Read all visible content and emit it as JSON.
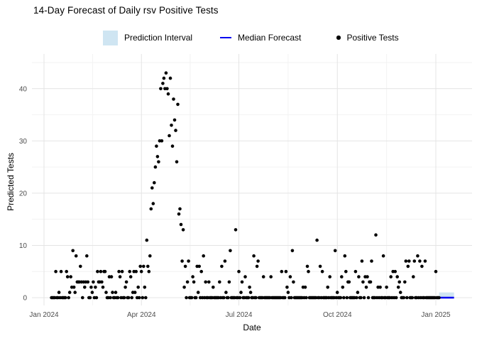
{
  "title": "14-Day Forecast of Daily rsv Positive Tests",
  "legend": {
    "prediction_interval": "Prediction Interval",
    "median_forecast": "Median Forecast",
    "positive_tests": "Positive Tests"
  },
  "colors": {
    "prediction_interval": "#cfe5f2",
    "median_forecast": "#0000f0",
    "points": "#000000",
    "grid_major": "#e4e4e4",
    "grid_minor": "#f2f2f2",
    "tick_text": "#4d4d4d",
    "background": "#ffffff"
  },
  "chart_data": {
    "type": "scatter",
    "title": "14-Day Forecast of Daily rsv Positive Tests",
    "xlabel": "Date",
    "ylabel": "Predicted Tests",
    "legend_position": "top",
    "grid": "on",
    "x_unit": "days_since_2024-01-01",
    "x_tick_labels": [
      "Jan 2024",
      "Apr 2024",
      "Jul 2024",
      "Oct 2024",
      "Jan 2025"
    ],
    "x_tick_days": [
      0,
      91,
      182,
      274,
      366
    ],
    "x_minor_days": [
      45.5,
      136.5,
      228,
      320
    ],
    "xlim_days": [
      -11,
      400
    ],
    "y_ticks": [
      0,
      10,
      20,
      30,
      40
    ],
    "y_minor": [
      5,
      15,
      25,
      35,
      45
    ],
    "ylim": [
      0,
      45
    ],
    "series_name": "Positive Tests",
    "start_day_offset": 7,
    "values": [
      0,
      0,
      0,
      0,
      5,
      0,
      0,
      1,
      0,
      5,
      0,
      0,
      0,
      0,
      5,
      4,
      0,
      1,
      4,
      2,
      9,
      2,
      1,
      8,
      3,
      3,
      3,
      6,
      3,
      0,
      3,
      2,
      3,
      8,
      3,
      0,
      0,
      2,
      1,
      3,
      0,
      2,
      0,
      5,
      3,
      3,
      5,
      3,
      2,
      5,
      5,
      1,
      0,
      0,
      4,
      0,
      4,
      1,
      0,
      0,
      1,
      0,
      0,
      5,
      4,
      0,
      5,
      0,
      0,
      2,
      3,
      0,
      0,
      5,
      4,
      0,
      1,
      5,
      1,
      5,
      0,
      2,
      0,
      6,
      5,
      0,
      6,
      2,
      0,
      11,
      6,
      5,
      8,
      17,
      21,
      18,
      22,
      25,
      29,
      27,
      26,
      30,
      40,
      30,
      41,
      42,
      40,
      43,
      40,
      39,
      31,
      42,
      33,
      29,
      38,
      34,
      32,
      26,
      37,
      16,
      17,
      14,
      7,
      13,
      2,
      6,
      0,
      3,
      7,
      0,
      0,
      0,
      4,
      3,
      0,
      0,
      6,
      1,
      6,
      0,
      5,
      0,
      8,
      0,
      3,
      0,
      0,
      3,
      0,
      0,
      0,
      2,
      0,
      0,
      0,
      0,
      0,
      3,
      0,
      6,
      0,
      0,
      7,
      1,
      0,
      0,
      3,
      9,
      0,
      0,
      0,
      0,
      13,
      0,
      0,
      5,
      0,
      1,
      3,
      0,
      0,
      4,
      0,
      0,
      0,
      2,
      1,
      0,
      0,
      8,
      0,
      0,
      6,
      7,
      0,
      0,
      0,
      0,
      4,
      0,
      0,
      0,
      0,
      0,
      0,
      4,
      0,
      0,
      0,
      0,
      0,
      0,
      0,
      0,
      0,
      5,
      0,
      0,
      0,
      5,
      2,
      1,
      0,
      4,
      0,
      9,
      3,
      0,
      0,
      0,
      0,
      0,
      0,
      0,
      0,
      2,
      0,
      2,
      0,
      6,
      5,
      0,
      0,
      0,
      0,
      0,
      0,
      0,
      11,
      0,
      0,
      6,
      0,
      5,
      0,
      0,
      0,
      0,
      2,
      0,
      4,
      0,
      0,
      0,
      0,
      9,
      0,
      1,
      0,
      0,
      0,
      4,
      2,
      0,
      8,
      5,
      0,
      3,
      3,
      0,
      0,
      0,
      0,
      0,
      5,
      0,
      1,
      4,
      0,
      0,
      7,
      3,
      0,
      4,
      2,
      4,
      0,
      3,
      3,
      7,
      0,
      0,
      0,
      12,
      0,
      2,
      0,
      2,
      0,
      0,
      8,
      0,
      0,
      2,
      0,
      0,
      0,
      4,
      0,
      5,
      0,
      5,
      0,
      4,
      2,
      3,
      1,
      0,
      0,
      0,
      3,
      7,
      0,
      6,
      7,
      0,
      0,
      0,
      4,
      7,
      0,
      0,
      8,
      0,
      7,
      0,
      6,
      0,
      0,
      7,
      0,
      0,
      0,
      0,
      0,
      0,
      0,
      0,
      0,
      5,
      0,
      0,
      0
    ],
    "forecast": {
      "name": "14-day forecast",
      "start_day": 369,
      "days": 14,
      "median": 0,
      "interval_lower": 0,
      "interval_upper": 1
    }
  }
}
